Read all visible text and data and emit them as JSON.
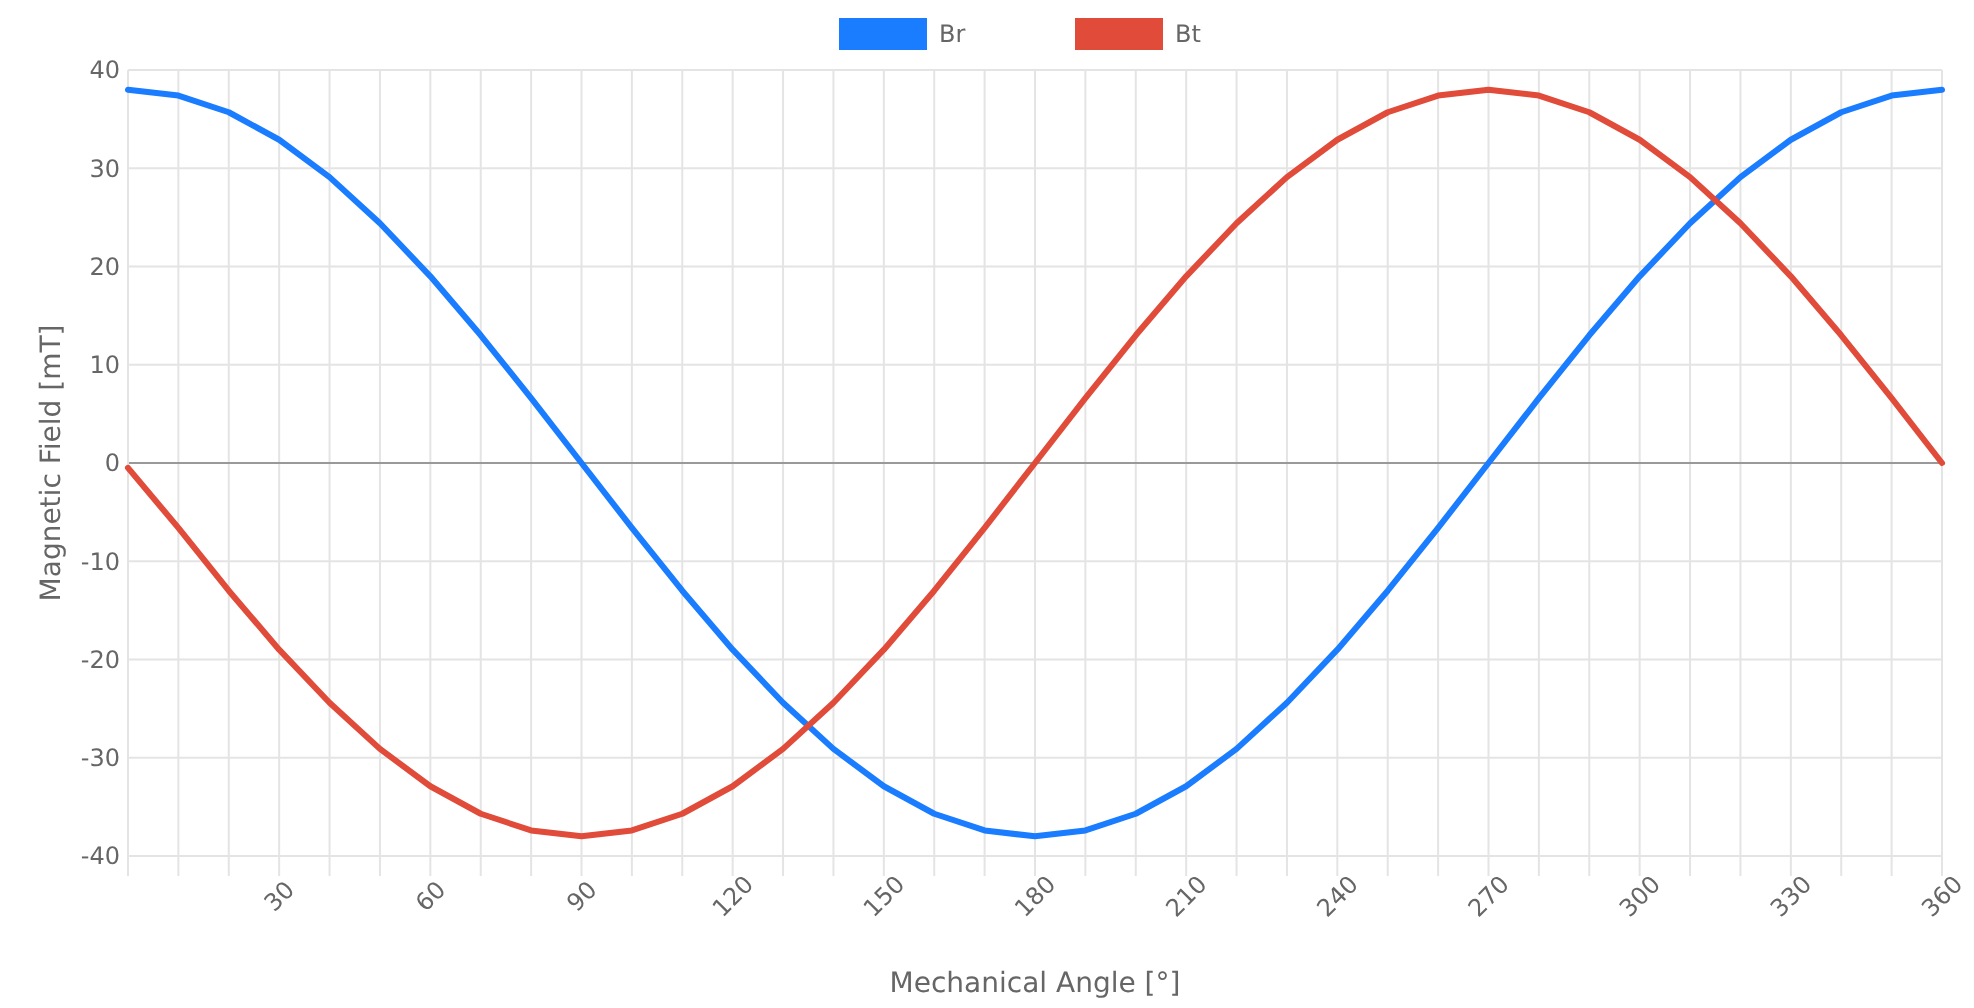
{
  "chart_data": {
    "type": "line",
    "xlabel": "Mechanical Angle [°]",
    "ylabel": "Magnetic Field [mT]",
    "x": [
      0,
      10,
      20,
      30,
      40,
      50,
      60,
      70,
      80,
      90,
      100,
      110,
      120,
      130,
      140,
      150,
      160,
      170,
      180,
      190,
      200,
      210,
      220,
      230,
      240,
      250,
      260,
      270,
      280,
      290,
      300,
      310,
      320,
      330,
      340,
      350,
      360
    ],
    "series": [
      {
        "name": "Br",
        "color": "#1a7cff",
        "values": [
          38,
          37.4,
          35.7,
          32.9,
          29.1,
          24.4,
          19,
          13,
          6.6,
          0,
          -6.6,
          -13,
          -19,
          -24.4,
          -29.1,
          -32.9,
          -35.7,
          -37.4,
          -38,
          -37.4,
          -35.7,
          -32.9,
          -29.1,
          -24.4,
          -19,
          -13,
          -6.6,
          0,
          6.6,
          13,
          19,
          24.4,
          29.1,
          32.9,
          35.7,
          37.4,
          38
        ]
      },
      {
        "name": "Bt",
        "color": "#e04b3a",
        "values": [
          -0.5,
          -6.6,
          -13,
          -19,
          -24.4,
          -29.1,
          -32.9,
          -35.7,
          -37.4,
          -38,
          -37.4,
          -35.7,
          -32.9,
          -29.1,
          -24.4,
          -19,
          -13,
          -6.6,
          0,
          6.6,
          13,
          19,
          24.4,
          29.1,
          32.9,
          35.7,
          37.4,
          38,
          37.4,
          35.7,
          32.9,
          29.1,
          24.4,
          19,
          13,
          6.6,
          0
        ]
      }
    ],
    "xlim": [
      0,
      360
    ],
    "xticks": [
      {
        "value": 10,
        "label": null
      },
      {
        "value": 20,
        "label": null
      },
      30,
      {
        "value": 40,
        "label": null
      },
      {
        "value": 50,
        "label": null
      },
      60,
      {
        "value": 70,
        "label": null
      },
      {
        "value": 80,
        "label": null
      },
      90,
      {
        "value": 100,
        "label": null
      },
      {
        "value": 110,
        "label": null
      },
      120,
      {
        "value": 130,
        "label": null
      },
      {
        "value": 140,
        "label": null
      },
      150,
      {
        "value": 160,
        "label": null
      },
      {
        "value": 170,
        "label": null
      },
      180,
      {
        "value": 190,
        "label": null
      },
      {
        "value": 200,
        "label": null
      },
      210,
      {
        "value": 220,
        "label": null
      },
      {
        "value": 230,
        "label": null
      },
      240,
      {
        "value": 250,
        "label": null
      },
      {
        "value": 260,
        "label": null
      },
      270,
      {
        "value": 280,
        "label": null
      },
      {
        "value": 290,
        "label": null
      },
      300,
      {
        "value": 310,
        "label": null
      },
      {
        "value": 320,
        "label": null
      },
      330,
      {
        "value": 340,
        "label": null
      },
      {
        "value": 350,
        "label": null
      },
      360
    ],
    "ylim": [
      -40,
      40
    ],
    "yticks": [
      -40,
      -30,
      -20,
      -10,
      0,
      10,
      20,
      30,
      40
    ],
    "grid": true,
    "legend": "top",
    "marker": "none",
    "line_style": "solid"
  }
}
